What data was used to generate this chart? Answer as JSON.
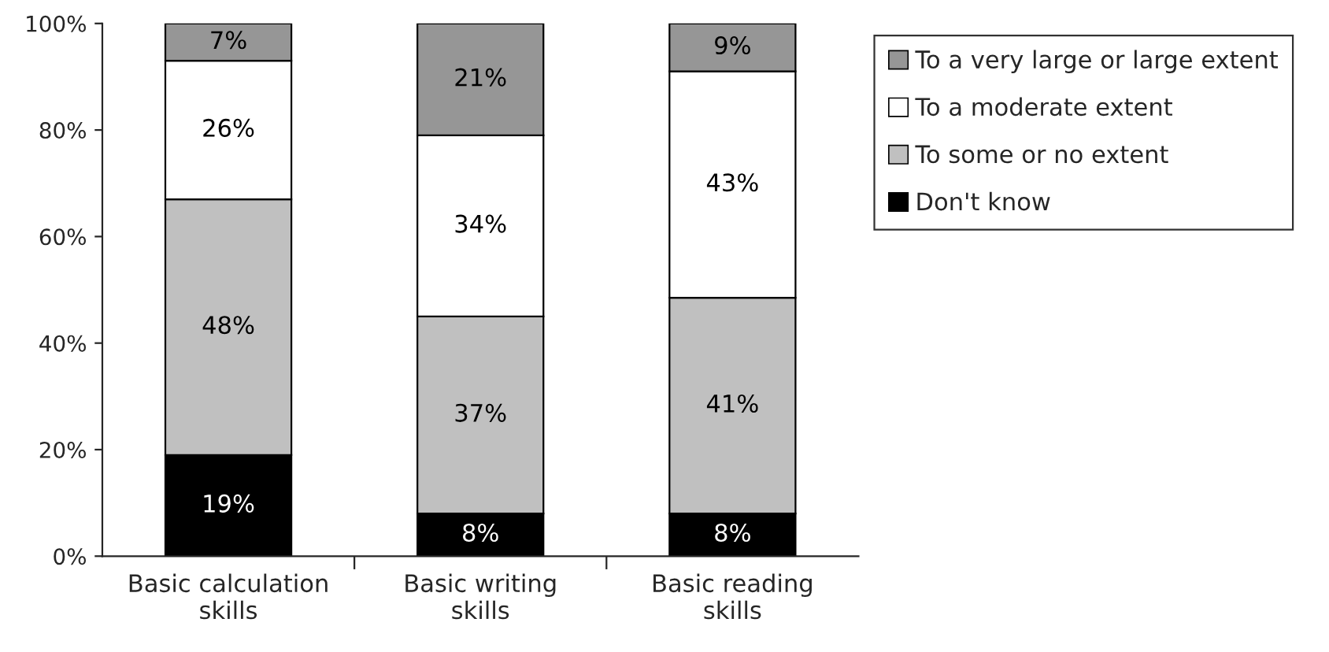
{
  "chart_data": {
    "type": "bar",
    "stacked": true,
    "categories": [
      "Basic calculation\nskills",
      "Basic writing\nskills",
      "Basic reading\nskills"
    ],
    "series": [
      {
        "name": "Don't know",
        "color": "#000000",
        "values": [
          19,
          8,
          8
        ],
        "value_labels": [
          "19%",
          "8%",
          "8%"
        ]
      },
      {
        "name": "To some or no extent",
        "color": "#c0c0c0",
        "values": [
          48,
          37,
          40.5
        ],
        "value_labels": [
          "48%",
          "37%",
          "41%"
        ]
      },
      {
        "name": "To a moderate extent",
        "color": "#ffffff",
        "values": [
          26,
          34,
          42.5
        ],
        "value_labels": [
          "26%",
          "34%",
          "43%"
        ]
      },
      {
        "name": "To a very large or large extent",
        "color": "#969696",
        "values": [
          7,
          21,
          9
        ],
        "value_labels": [
          "7%",
          "21%",
          "9%"
        ]
      }
    ],
    "ylim": [
      0,
      100
    ],
    "yticks": [
      {
        "value": 0,
        "label": "0%"
      },
      {
        "value": 20,
        "label": "20%"
      },
      {
        "value": 40,
        "label": "40%"
      },
      {
        "value": 60,
        "label": "60%"
      },
      {
        "value": 80,
        "label": "80%"
      },
      {
        "value": 100,
        "label": "100%"
      }
    ],
    "grid": false,
    "legend": "right"
  }
}
